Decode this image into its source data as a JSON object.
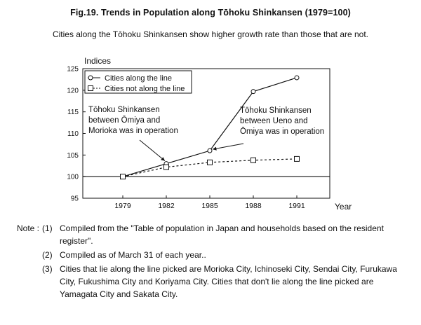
{
  "title": "Fig.19. Trends in Population along Tōhoku Shinkansen (1979=100)",
  "subtitle": "Cities along the Tōhoku Shinkansen show higher growth rate than those that are not.",
  "chart_data": {
    "type": "line",
    "ylabel": "Indices",
    "xlabel": "Year",
    "x": [
      1979,
      1982,
      1985,
      1988,
      1991
    ],
    "ylim": [
      95,
      125
    ],
    "yticks": [
      95,
      100,
      105,
      110,
      115,
      120,
      125
    ],
    "baseline": 100,
    "series": [
      {
        "name": "Cities along the line",
        "marker": "circle",
        "line": "solid",
        "values": [
          100,
          103,
          106,
          119.7,
          122.9
        ]
      },
      {
        "name": "Cities not along the line",
        "marker": "square",
        "line": "dashed",
        "values": [
          100,
          102.2,
          103.3,
          103.8,
          104.1
        ]
      }
    ],
    "annotations": [
      {
        "lines": [
          "Tōhoku Shinkansen",
          "between Ōmiya and",
          "Morioka was in operation"
        ],
        "points_to": {
          "x": 1982,
          "series": 0
        }
      },
      {
        "lines": [
          "Tōhoku Shinkansen",
          "between Ueno and",
          "Ōmiya was in operation"
        ],
        "points_to": {
          "x": 1985,
          "series": 0
        }
      }
    ]
  },
  "notes": {
    "label": "Note :",
    "items": [
      {
        "num": "(1)",
        "text": "Compiled from the \"Table of population in Japan and households based on the resident register\"."
      },
      {
        "num": "(2)",
        "text": "Compiled as of March 31 of each year.."
      },
      {
        "num": "(3)",
        "text": "Cities that lie along the line picked are Morioka City, Ichinoseki City, Sendai City, Furukawa City, Fukushima City and Koriyama City. Cities that don't lie along the line picked are Yamagata City and Sakata City."
      }
    ]
  }
}
